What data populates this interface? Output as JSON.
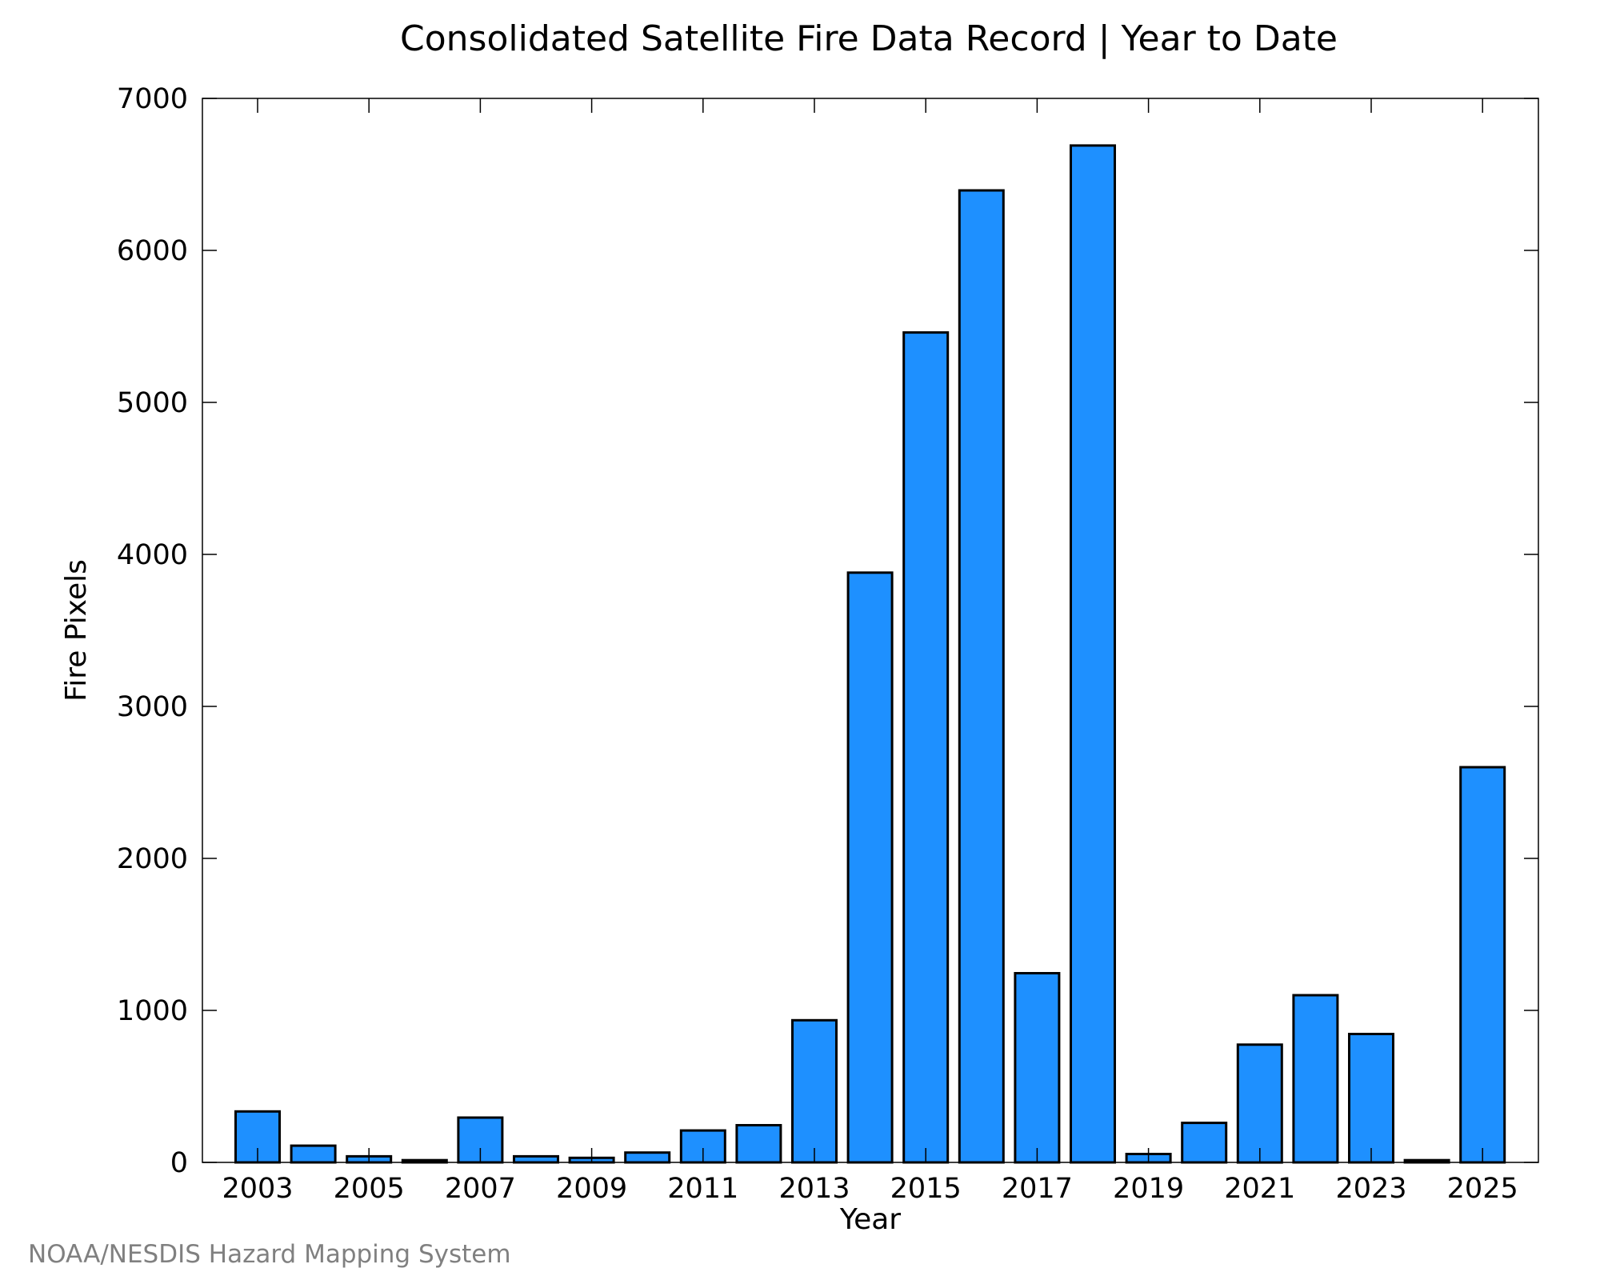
{
  "colors": {
    "bar_fill": "#1e90ff",
    "bar_stroke": "#000000",
    "axis": "#000000",
    "credit": "#808080"
  },
  "chart_data": {
    "type": "bar",
    "title": "Consolidated Satellite Fire Data Record | Year to Date",
    "xlabel": "Year",
    "ylabel": "Fire Pixels",
    "credit": "NOAA/NESDIS Hazard Mapping System",
    "categories": [
      "2003",
      "2004",
      "2005",
      "2006",
      "2007",
      "2008",
      "2009",
      "2010",
      "2011",
      "2012",
      "2013",
      "2014",
      "2015",
      "2016",
      "2017",
      "2018",
      "2019",
      "2020",
      "2021",
      "2022",
      "2023",
      "2024",
      "2025"
    ],
    "values": [
      335,
      110,
      40,
      15,
      295,
      40,
      30,
      65,
      210,
      245,
      935,
      3880,
      5460,
      6395,
      1245,
      6690,
      55,
      260,
      775,
      1100,
      845,
      15,
      2600
    ],
    "x_tick_labels": [
      "2003",
      "2005",
      "2007",
      "2009",
      "2011",
      "2013",
      "2015",
      "2017",
      "2019",
      "2021",
      "2023",
      "2025"
    ],
    "y_ticks": [
      0,
      1000,
      2000,
      3000,
      4000,
      5000,
      6000,
      7000
    ],
    "ylim": [
      0,
      7000
    ],
    "grid": false,
    "legend": "none"
  }
}
